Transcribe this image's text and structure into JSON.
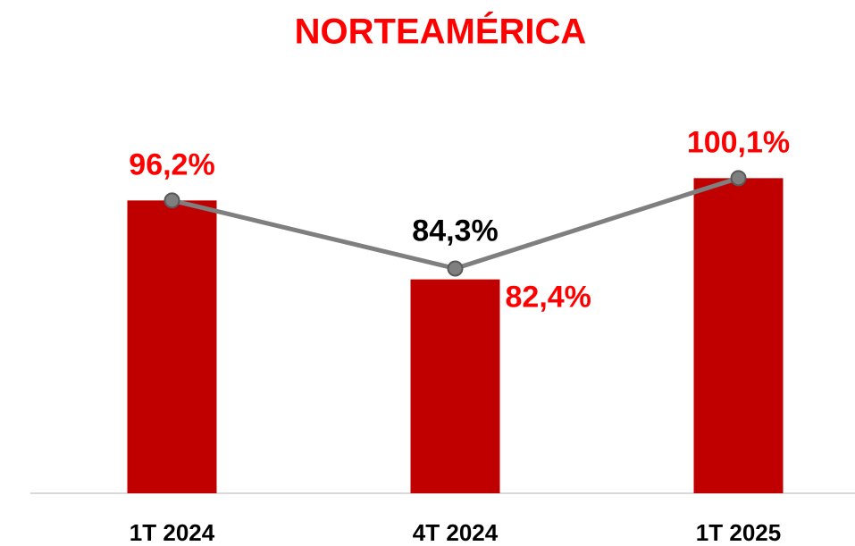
{
  "chart_data": {
    "type": "bar+line",
    "title": "NORTEAMÉRICA",
    "categories": [
      "1T 2024",
      "4T 2024",
      "1T 2025"
    ],
    "series": [
      {
        "type": "bar",
        "color": "#c00000",
        "values": [
          96.2,
          82.4,
          100.1
        ],
        "value_labels": [
          "96,2%",
          "82,4%",
          "100,1%"
        ]
      },
      {
        "type": "line",
        "color": "#7f7f7f",
        "values": [
          96.2,
          84.3,
          100.1
        ],
        "value_labels": [
          null,
          "84,3%",
          null
        ]
      }
    ],
    "ylim": [
      45,
      110
    ]
  }
}
